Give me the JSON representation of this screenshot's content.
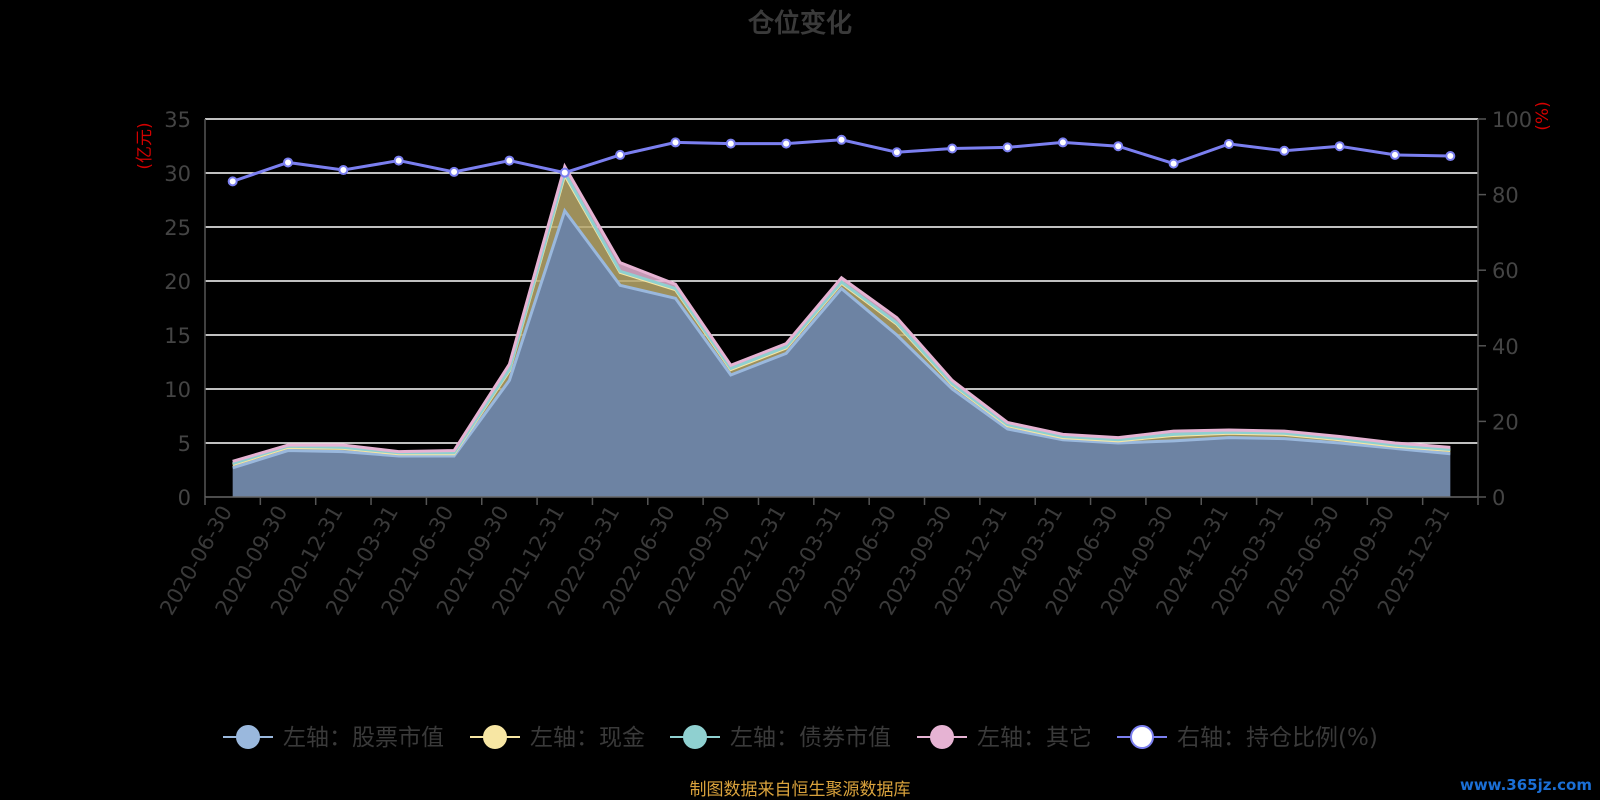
{
  "colors": {
    "stock": "#9ab8dd",
    "cash": "#f7e6a3",
    "bond": "#8fd0d0",
    "other": "#e6b3d3",
    "ratio": "#7b7ff0",
    "area_fill": "#6d83a3",
    "cash_area": "#b8a86b",
    "grid": "#ffffff",
    "axis_unit": "#d40000",
    "source": "#d9a23c"
  },
  "chart_data": {
    "type": "area",
    "title": "仓位变化",
    "left_axis": {
      "unit": "(亿元)",
      "min": 0,
      "max": 35,
      "ticks": [
        0,
        5,
        10,
        15,
        20,
        25,
        30,
        35
      ]
    },
    "right_axis": {
      "unit": "(%)",
      "min": 0,
      "max": 100,
      "ticks": [
        0,
        20,
        40,
        60,
        80,
        100
      ]
    },
    "grid": true,
    "legend_position": "bottom",
    "categories": [
      "2020-06-30",
      "2020-09-30",
      "2020-12-31",
      "2021-03-31",
      "2021-06-30",
      "2021-09-30",
      "2021-12-31",
      "2022-03-31",
      "2022-06-30",
      "2022-09-30",
      "2022-12-31",
      "2023-03-31",
      "2023-06-30",
      "2023-09-30",
      "2023-12-31",
      "2024-03-31",
      "2024-06-30",
      "2024-09-30",
      "2024-12-31",
      "2025-03-31",
      "2025-06-30",
      "2025-09-30",
      "2025-12-31"
    ],
    "series": [
      {
        "name": "左轴：股票市值",
        "axis": "left",
        "key": "stock",
        "values": [
          2.7,
          4.3,
          4.2,
          3.8,
          3.8,
          10.8,
          26.5,
          19.6,
          18.4,
          11.3,
          13.3,
          19.3,
          15.0,
          10.0,
          6.3,
          5.3,
          5.0,
          5.2,
          5.5,
          5.4,
          5.0,
          4.5,
          4.0
        ]
      },
      {
        "name": "左轴：现金",
        "axis": "left",
        "key": "cash",
        "values": [
          0.3,
          0.3,
          0.3,
          0.2,
          0.2,
          0.9,
          3.3,
          1.2,
          0.8,
          0.5,
          0.5,
          0.5,
          1.0,
          0.4,
          0.3,
          0.2,
          0.2,
          0.5,
          0.4,
          0.4,
          0.3,
          0.2,
          0.3
        ]
      },
      {
        "name": "左轴：债券市值",
        "axis": "left",
        "key": "bond",
        "values": [
          0.1,
          0.1,
          0.1,
          0.1,
          0.1,
          0.1,
          0.2,
          0.1,
          0.1,
          0.1,
          0.1,
          0.1,
          0.1,
          0.1,
          0.1,
          0.1,
          0.1,
          0.1,
          0.1,
          0.1,
          0.1,
          0.1,
          0.1
        ]
      },
      {
        "name": "左轴：其它",
        "axis": "left",
        "key": "other",
        "values": [
          0.2,
          0.1,
          0.2,
          0.1,
          0.2,
          0.5,
          0.6,
          0.8,
          0.4,
          0.3,
          0.3,
          0.4,
          0.5,
          0.3,
          0.2,
          0.2,
          0.2,
          0.3,
          0.2,
          0.2,
          0.2,
          0.2,
          0.2
        ]
      },
      {
        "name": "右轴：持仓比例(%)",
        "axis": "right",
        "key": "ratio",
        "values": [
          83.5,
          88.5,
          86.5,
          89.0,
          86.0,
          89.0,
          85.8,
          90.5,
          93.8,
          93.5,
          93.5,
          94.5,
          91.2,
          92.2,
          92.5,
          93.8,
          92.8,
          88.2,
          93.4,
          91.6,
          92.8,
          90.5,
          90.2
        ]
      }
    ]
  },
  "footer": {
    "source": "制图数据来自恒生聚源数据库",
    "watermark": "www.365jz.com"
  }
}
